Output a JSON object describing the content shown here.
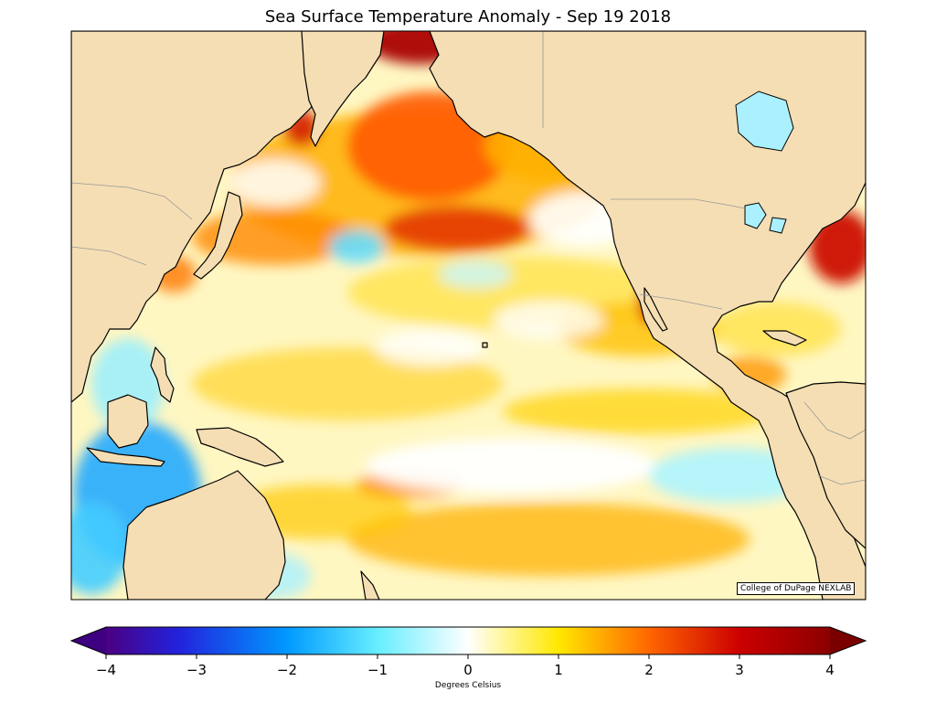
{
  "title": "Sea Surface Temperature Anomaly - Sep 19 2018",
  "credit": "College of DuPage NEXLAB",
  "colorbar": {
    "label": "Degrees Celsius",
    "min": -4,
    "max": 4,
    "ticks": [
      {
        "value": -4,
        "label": "−4"
      },
      {
        "value": -3,
        "label": "−3"
      },
      {
        "value": -2,
        "label": "−2"
      },
      {
        "value": -1,
        "label": "−1"
      },
      {
        "value": 0,
        "label": "0"
      },
      {
        "value": 1,
        "label": "1"
      },
      {
        "value": 2,
        "label": "2"
      },
      {
        "value": 3,
        "label": "3"
      },
      {
        "value": 4,
        "label": "4"
      }
    ],
    "stops": [
      {
        "value": -4,
        "color": "#4b0082"
      },
      {
        "value": -3.2,
        "color": "#2222dd"
      },
      {
        "value": -2,
        "color": "#0099ff"
      },
      {
        "value": -1,
        "color": "#66eeff"
      },
      {
        "value": 0,
        "color": "#ffffff"
      },
      {
        "value": 1,
        "color": "#ffe800"
      },
      {
        "value": 2,
        "color": "#ff6600"
      },
      {
        "value": 3,
        "color": "#cc0000"
      },
      {
        "value": 4,
        "color": "#8b0000"
      }
    ],
    "under_color": "#3d0080",
    "over_color": "#7a0000"
  },
  "colors": {
    "land": "#f5deb3",
    "coastline": "#000000",
    "borders": "#999999"
  }
}
